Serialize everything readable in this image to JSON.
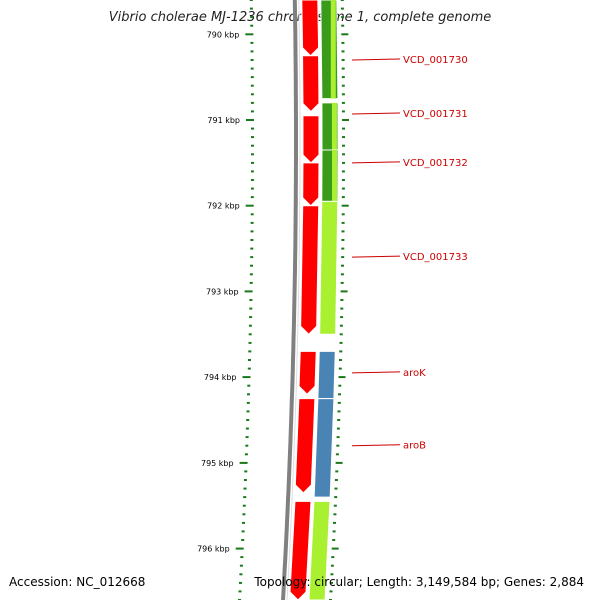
{
  "title": "Vibrio cholerae MJ-1236 chromosome 1, complete genome",
  "accession": "Accession: NC_012668",
  "stats": "Topology: circular; Length: 3,149,584 bp; Genes: 2,884",
  "scale": {
    "start_kbp": 789.6,
    "end_kbp": 796.6,
    "labeled_ticks": [
      {
        "kbp": 790,
        "label": "790 kbp"
      },
      {
        "kbp": 791,
        "label": "791 kbp"
      },
      {
        "kbp": 792,
        "label": "792 kbp"
      },
      {
        "kbp": 793,
        "label": "793 kbp"
      },
      {
        "kbp": 794,
        "label": "794 kbp"
      },
      {
        "kbp": 795,
        "label": "795 kbp"
      },
      {
        "kbp": 796,
        "label": "796 kbp"
      }
    ]
  },
  "colors": {
    "backbone": "#808080",
    "ticks": "#1a7a1a",
    "forward_track": "#ff0000",
    "gene_green_dark": "#3a9a1a",
    "gene_green_light": "#a8f030",
    "gene_blue": "#4a84b4",
    "label_text": "#cc0000"
  },
  "forward_features": [
    {
      "start_kbp": 789.6,
      "end_kbp": 790.25
    },
    {
      "start_kbp": 790.25,
      "end_kbp": 790.9
    },
    {
      "start_kbp": 790.95,
      "end_kbp": 791.5
    },
    {
      "start_kbp": 791.5,
      "end_kbp": 792.0
    },
    {
      "start_kbp": 792.0,
      "end_kbp": 793.5
    },
    {
      "start_kbp": 793.7,
      "end_kbp": 794.2
    },
    {
      "start_kbp": 794.25,
      "end_kbp": 795.35
    },
    {
      "start_kbp": 795.45,
      "end_kbp": 796.6
    }
  ],
  "genes": [
    {
      "name": "VCD_001730",
      "start_kbp": 789.6,
      "end_kbp": 790.75,
      "color": "gene_green_dark",
      "label_kbp": 790.3
    },
    {
      "name": "VCD_001731",
      "start_kbp": 790.8,
      "end_kbp": 791.35,
      "color": "gene_green_dark",
      "label_kbp": 790.93
    },
    {
      "name": "VCD_001732",
      "start_kbp": 791.35,
      "end_kbp": 791.95,
      "color": "gene_green_dark",
      "label_kbp": 791.5
    },
    {
      "name": "VCD_001733",
      "start_kbp": 791.95,
      "end_kbp": 793.5,
      "color": "gene_green_light",
      "label_kbp": 792.6
    },
    {
      "name": "aroK",
      "start_kbp": 793.7,
      "end_kbp": 794.25,
      "color": "gene_blue",
      "label_kbp": 793.95
    },
    {
      "name": "aroB",
      "start_kbp": 794.25,
      "end_kbp": 795.4,
      "color": "gene_blue",
      "label_kbp": 794.8
    },
    {
      "name": "",
      "start_kbp": 795.45,
      "end_kbp": 796.6,
      "color": "gene_green_light",
      "label_kbp": null
    }
  ]
}
